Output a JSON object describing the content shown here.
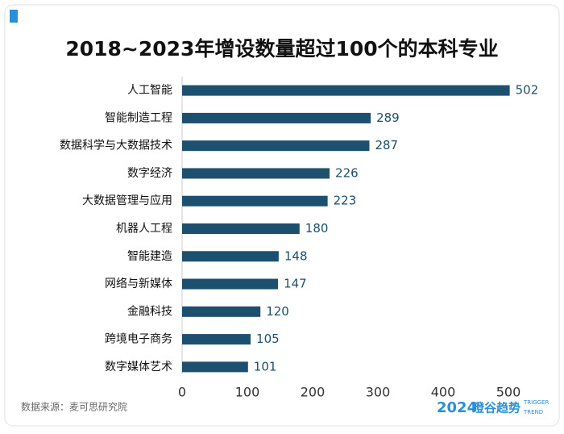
{
  "chart_data": {
    "type": "hbar",
    "title": "2018~2023年增设数量超过100个的本科专业",
    "categories": [
      "人工智能",
      "智能制造工程",
      "数据科学与大数据技术",
      "数字经济",
      "大数据管理与应用",
      "机器人工程",
      "智能建造",
      "网络与新媒体",
      "金融科技",
      "跨境电子商务",
      "数字媒体艺术"
    ],
    "values": [
      502,
      289,
      287,
      226,
      223,
      180,
      148,
      147,
      120,
      105,
      101
    ],
    "color": "#1d4f6e",
    "xlim": [
      0,
      520
    ],
    "xticks": [
      0,
      100,
      200,
      300,
      400,
      500
    ],
    "grid": false
  },
  "footer": {
    "source": "数据来源：麦可思研究院",
    "logo_year": "2024",
    "logo_name": "瞪谷趋势",
    "logo_en_1": "TRIGGER",
    "logo_en_2": "TREND"
  }
}
